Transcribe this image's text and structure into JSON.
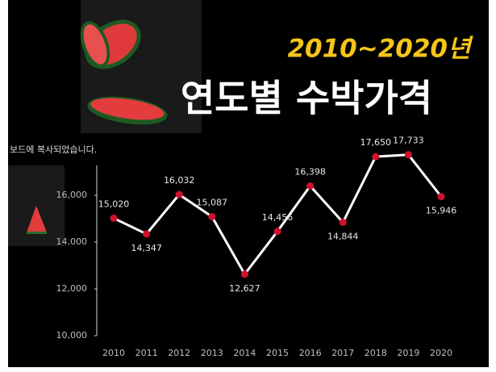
{
  "chart_data": {
    "type": "line",
    "title": "2010~2020년",
    "subtitle": "연도별 수박가격",
    "annotation": "보드에 복사되었습니다.",
    "categories": [
      "2010",
      "2011",
      "2012",
      "2013",
      "2014",
      "2015",
      "2016",
      "2017",
      "2018",
      "2019",
      "2020"
    ],
    "series": [
      {
        "name": "수박가격",
        "color": "#ffffff",
        "values": [
          15020,
          14347,
          16032,
          15087,
          12627,
          14456,
          16398,
          14844,
          17650,
          17733,
          15946
        ],
        "value_labels": [
          "15,020",
          "14,347",
          "16,032",
          "15,087",
          "12,627",
          "14,456",
          "16,398",
          "14,844",
          "17,650",
          "17,733",
          "15,946"
        ]
      }
    ],
    "marker_color": "#d0112b",
    "ylim": [
      10000,
      18000
    ],
    "yticks": [
      {
        "value": 10000,
        "label": "10,000"
      },
      {
        "value": 12000,
        "label": "12,000"
      },
      {
        "value": 14000,
        "label": "14,000"
      },
      {
        "value": 16000,
        "label": "16,000"
      }
    ]
  }
}
